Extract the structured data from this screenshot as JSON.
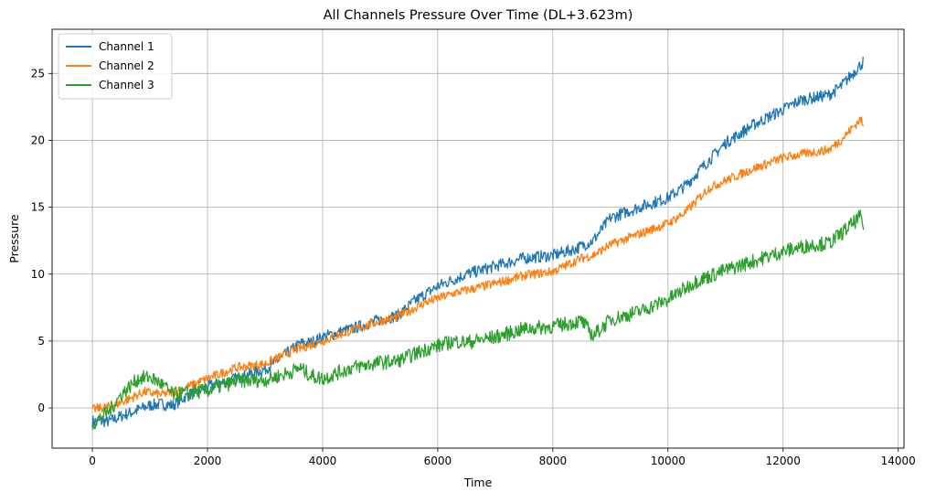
{
  "chart_data": {
    "type": "line",
    "title": "All Channels Pressure Over Time (DL+3.623m)",
    "xlabel": "Time",
    "ylabel": "Pressure",
    "xlim": [
      -700,
      14100
    ],
    "ylim": [
      -3.0,
      28.3
    ],
    "xticks": [
      0,
      2000,
      4000,
      6000,
      8000,
      10000,
      12000,
      14000
    ],
    "yticks": [
      0,
      5,
      10,
      15,
      20,
      25
    ],
    "grid": true,
    "legend_position": "top-left",
    "series": [
      {
        "name": "Channel 1",
        "color": "#1f77b4",
        "noise_band": 0.45,
        "points": [
          [
            0,
            -1.0
          ],
          [
            300,
            -1.0
          ],
          [
            500,
            -0.6
          ],
          [
            700,
            -0.3
          ],
          [
            1000,
            0.2
          ],
          [
            1200,
            0.3
          ],
          [
            1400,
            0.2
          ],
          [
            1600,
            0.8
          ],
          [
            2000,
            1.6
          ],
          [
            2500,
            2.2
          ],
          [
            3000,
            2.9
          ],
          [
            3300,
            3.8
          ],
          [
            3600,
            4.8
          ],
          [
            3800,
            4.9
          ],
          [
            4000,
            5.3
          ],
          [
            4500,
            5.9
          ],
          [
            5000,
            6.6
          ],
          [
            5300,
            6.9
          ],
          [
            5600,
            8.0
          ],
          [
            6000,
            9.1
          ],
          [
            6500,
            10.0
          ],
          [
            7000,
            10.6
          ],
          [
            7500,
            11.2
          ],
          [
            8000,
            11.4
          ],
          [
            8400,
            11.9
          ],
          [
            8700,
            12.5
          ],
          [
            9000,
            14.2
          ],
          [
            9500,
            15.0
          ],
          [
            10000,
            15.7
          ],
          [
            10300,
            16.6
          ],
          [
            10600,
            18.0
          ],
          [
            11000,
            19.8
          ],
          [
            11500,
            21.2
          ],
          [
            12000,
            22.3
          ],
          [
            12300,
            23.0
          ],
          [
            12800,
            23.4
          ],
          [
            13000,
            24.0
          ],
          [
            13400,
            25.9
          ]
        ]
      },
      {
        "name": "Channel 2",
        "color": "#ff7f0e",
        "noise_band": 0.35,
        "points": [
          [
            0,
            -0.1
          ],
          [
            300,
            0.1
          ],
          [
            600,
            0.6
          ],
          [
            900,
            1.2
          ],
          [
            1200,
            1.0
          ],
          [
            1500,
            1.3
          ],
          [
            2000,
            2.2
          ],
          [
            2500,
            3.0
          ],
          [
            3000,
            3.3
          ],
          [
            3500,
            4.3
          ],
          [
            4000,
            5.0
          ],
          [
            4500,
            5.8
          ],
          [
            5000,
            6.5
          ],
          [
            5300,
            6.8
          ],
          [
            5800,
            7.9
          ],
          [
            6300,
            8.6
          ],
          [
            7000,
            9.3
          ],
          [
            7500,
            9.9
          ],
          [
            8000,
            10.2
          ],
          [
            8500,
            11.2
          ],
          [
            8700,
            11.4
          ],
          [
            9000,
            12.2
          ],
          [
            9500,
            13.0
          ],
          [
            10000,
            13.8
          ],
          [
            10300,
            14.6
          ],
          [
            10700,
            16.4
          ],
          [
            11000,
            17.0
          ],
          [
            11500,
            17.9
          ],
          [
            12000,
            18.7
          ],
          [
            12500,
            19.1
          ],
          [
            12800,
            19.3
          ],
          [
            13000,
            20.0
          ],
          [
            13350,
            21.6
          ],
          [
            13400,
            20.9
          ]
        ]
      },
      {
        "name": "Channel 3",
        "color": "#2ca02c",
        "noise_band": 0.55,
        "points": [
          [
            0,
            -1.2
          ],
          [
            300,
            -0.2
          ],
          [
            500,
            1.0
          ],
          [
            800,
            2.2
          ],
          [
            1000,
            2.3
          ],
          [
            1200,
            1.8
          ],
          [
            1400,
            1.0
          ],
          [
            1600,
            1.1
          ],
          [
            2000,
            1.3
          ],
          [
            2500,
            2.0
          ],
          [
            3000,
            2.1
          ],
          [
            3400,
            2.6
          ],
          [
            3600,
            3.0
          ],
          [
            3800,
            2.4
          ],
          [
            4000,
            2.2
          ],
          [
            4500,
            3.0
          ],
          [
            5000,
            3.4
          ],
          [
            5300,
            3.5
          ],
          [
            5800,
            4.4
          ],
          [
            6300,
            5.0
          ],
          [
            6500,
            4.9
          ],
          [
            7000,
            5.3
          ],
          [
            7500,
            5.9
          ],
          [
            8000,
            6.1
          ],
          [
            8500,
            6.5
          ],
          [
            8700,
            5.4
          ],
          [
            9000,
            6.6
          ],
          [
            9500,
            7.2
          ],
          [
            10000,
            8.1
          ],
          [
            10500,
            9.5
          ],
          [
            11000,
            10.3
          ],
          [
            11500,
            11.0
          ],
          [
            12000,
            11.7
          ],
          [
            12500,
            12.2
          ],
          [
            12800,
            12.3
          ],
          [
            13000,
            13.0
          ],
          [
            13350,
            14.3
          ],
          [
            13400,
            13.5
          ]
        ]
      }
    ]
  }
}
